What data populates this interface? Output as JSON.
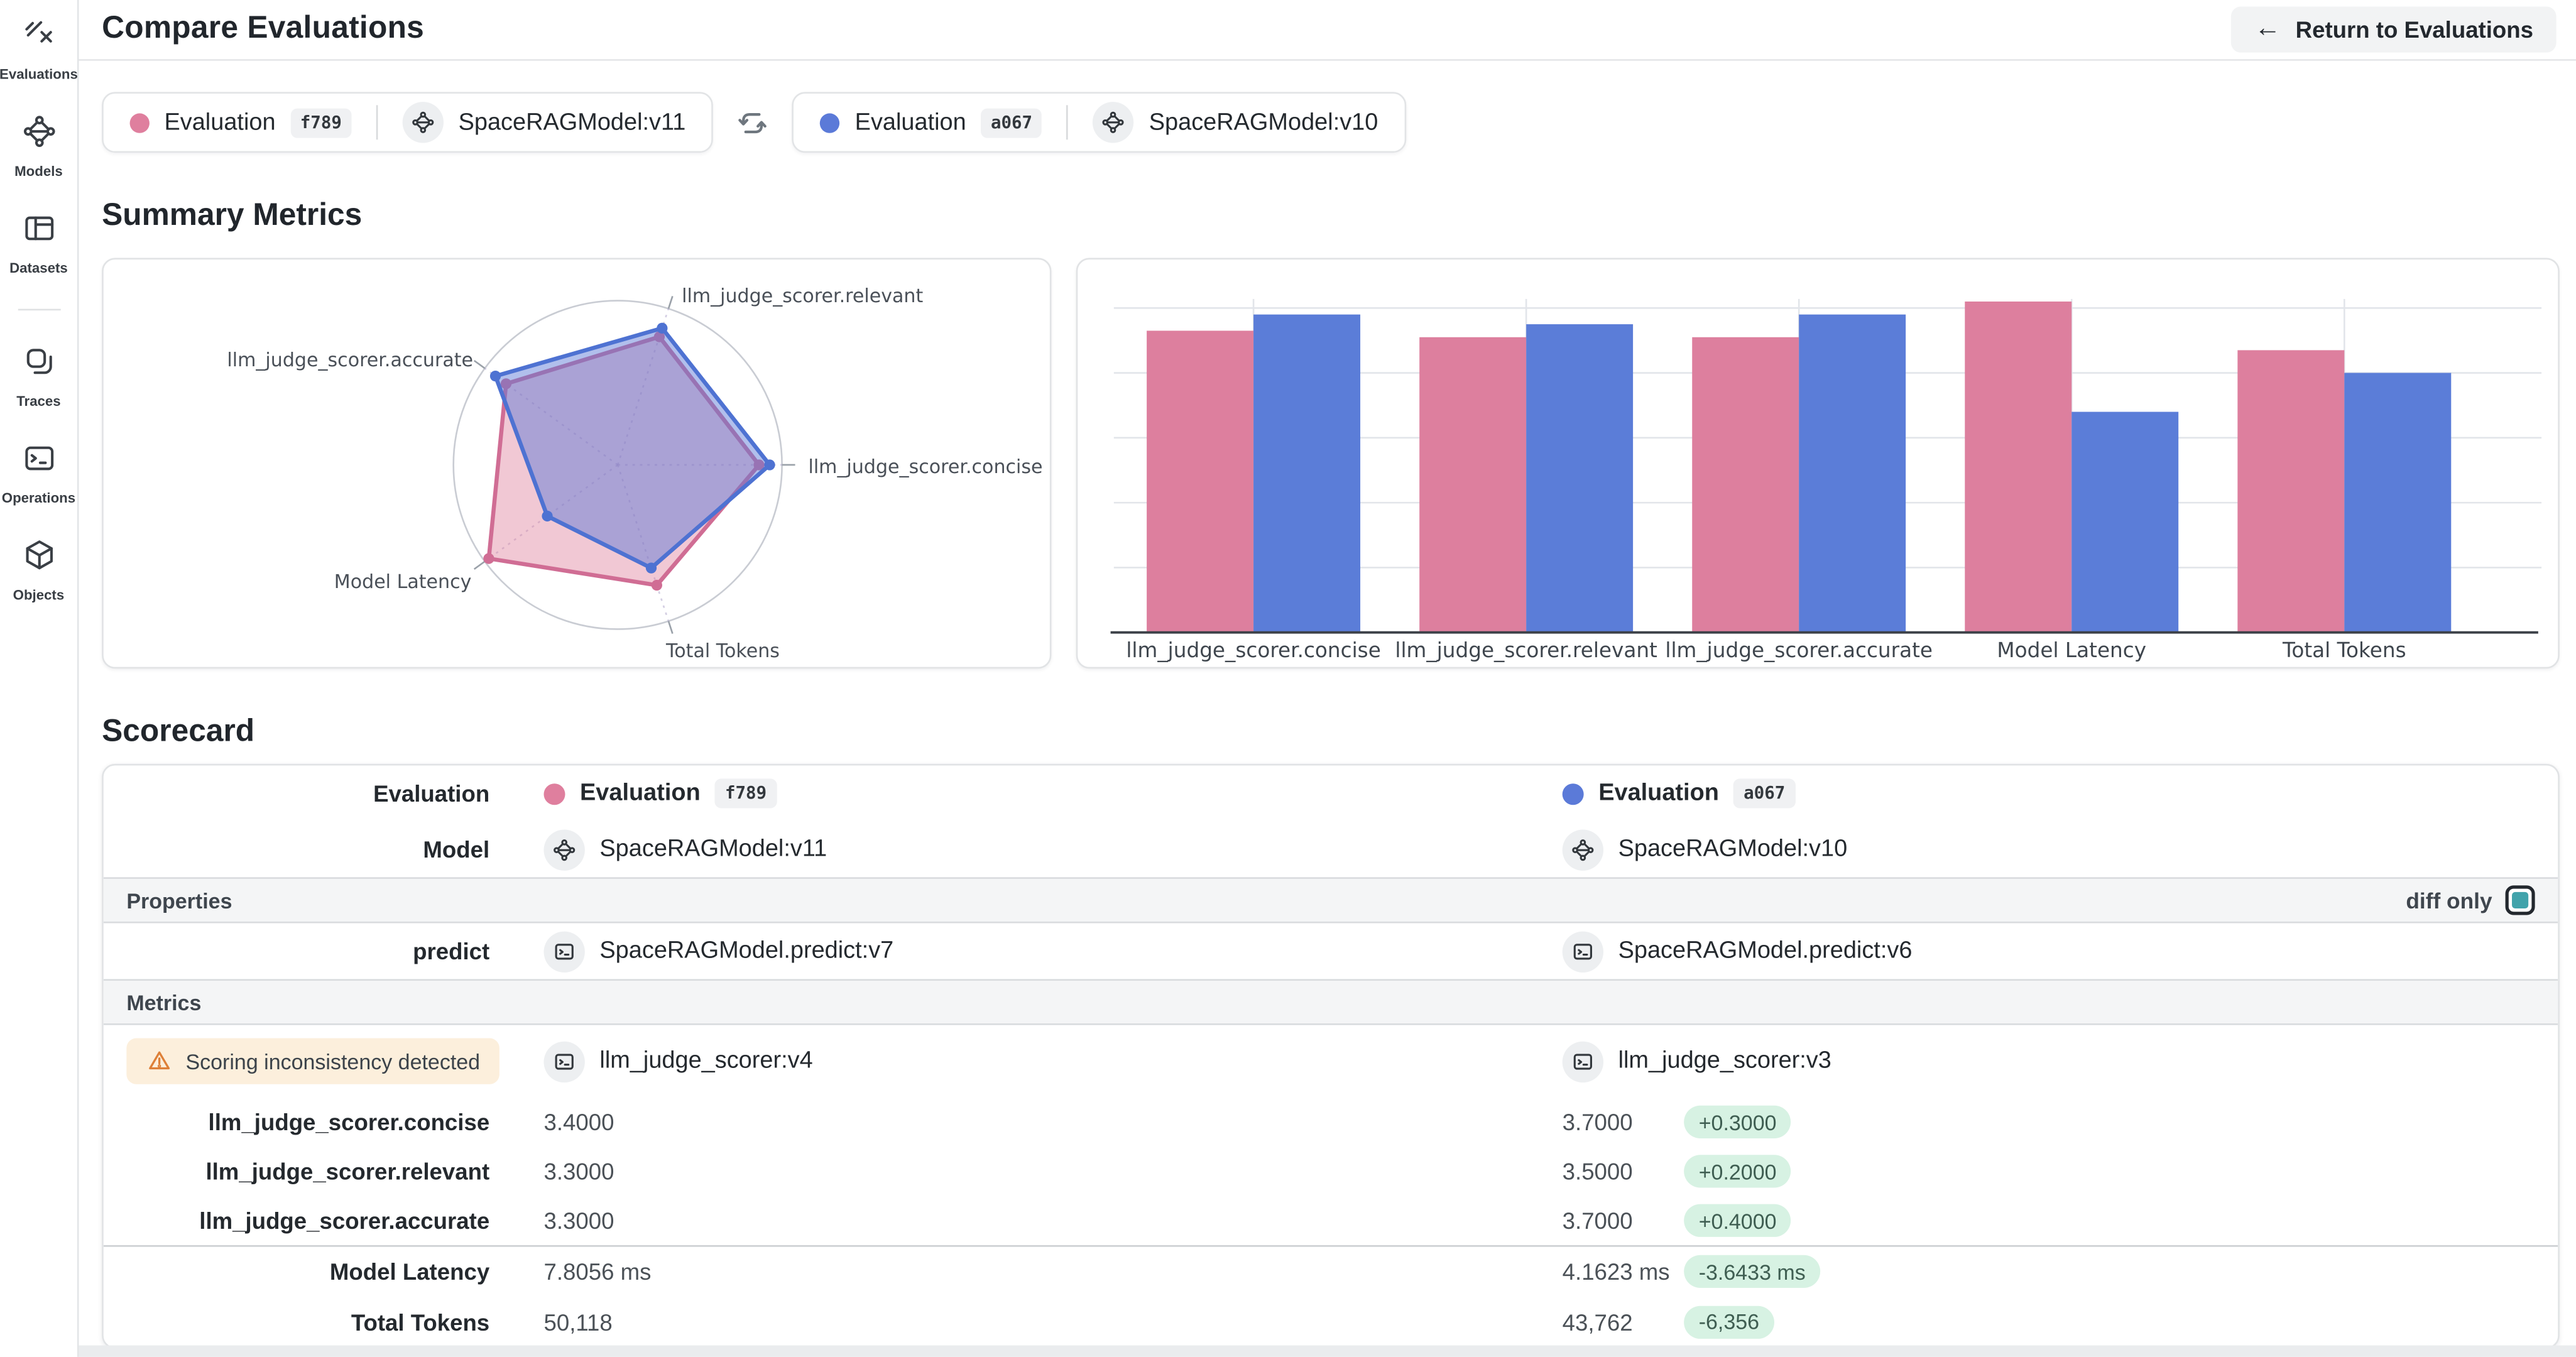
{
  "colors": {
    "pink": "#df7f9e",
    "blue": "#5b7ad8",
    "pink_line": "#d06d94",
    "blue_line": "#4e72d2",
    "green_badge_bg": "#d7f2e3",
    "green_badge_text": "#3f5e52",
    "warning_bg": "#fcefdc",
    "warning_icon": "#de8038",
    "teal_checkbox": "#41a3ab"
  },
  "sidebar": {
    "items": [
      {
        "label": "Evaluations",
        "icon": "evaluations-icon"
      },
      {
        "label": "Models",
        "icon": "models-icon"
      },
      {
        "label": "Datasets",
        "icon": "datasets-icon"
      },
      {
        "divider": true
      },
      {
        "label": "Traces",
        "icon": "traces-icon"
      },
      {
        "label": "Operations",
        "icon": "operations-icon"
      },
      {
        "label": "Objects",
        "icon": "objects-icon"
      }
    ]
  },
  "header": {
    "title": "Compare Evaluations",
    "back_arrow": "←",
    "return_button_label": "Return to Evaluations"
  },
  "comparison": {
    "left": {
      "label": "Evaluation",
      "id": "f789",
      "model": "SpaceRAGModel:v11"
    },
    "right": {
      "label": "Evaluation",
      "id": "a067",
      "model": "SpaceRAGModel:v10"
    }
  },
  "summary": {
    "heading": "Summary Metrics"
  },
  "chart_data": [
    {
      "type": "radar",
      "axes": [
        "llm_judge_scorer.relevant",
        "llm_judge_scorer.concise",
        "Total Tokens",
        "Model Latency",
        "llm_judge_scorer.accurate"
      ],
      "angles_deg": [
        72,
        0,
        288,
        216,
        144
      ],
      "rmax": 1.0,
      "grid": "single outer circle with dotted spokes",
      "series": [
        {
          "name": "Evaluation f789 (SpaceRAGModel:v11)",
          "color": "#d06d94",
          "fill": "rgba(224,133,160,0.45)",
          "normalized": [
            0.82,
            0.86,
            0.77,
            0.97,
            0.84
          ],
          "raw": [
            3.3,
            3.4,
            50118,
            7.8056,
            3.3
          ]
        },
        {
          "name": "Evaluation a067 (SpaceRAGModel:v10)",
          "color": "#4e72d2",
          "fill": "rgba(92,122,216,0.48)",
          "normalized": [
            0.875,
            0.925,
            0.66,
            0.53,
            0.92
          ],
          "raw": [
            3.5,
            3.7,
            43762,
            4.1623,
            3.7
          ]
        }
      ]
    },
    {
      "type": "bar",
      "categories": [
        "llm_judge_scorer.concise",
        "llm_judge_scorer.relevant",
        "llm_judge_scorer.accurate",
        "Model Latency",
        "Total Tokens"
      ],
      "ylim": [
        0,
        1.13
      ],
      "gridlines": "5 horizontal at 0.2 steps plus vertical line at each category center",
      "legend": "none",
      "series": [
        {
          "name": "Evaluation f789 (SpaceRAGModel:v11)",
          "color": "#dd7f9e",
          "values": [
            3.4,
            3.3,
            3.3,
            7.8056,
            50118
          ],
          "normalized": [
            0.93,
            0.91,
            0.91,
            1.02,
            0.87
          ]
        },
        {
          "name": "Evaluation a067 (SpaceRAGModel:v10)",
          "color": "#5b7dd8",
          "values": [
            3.7,
            3.5,
            3.7,
            4.1623,
            43762
          ],
          "normalized": [
            0.98,
            0.95,
            0.98,
            0.68,
            0.8
          ]
        }
      ]
    }
  ],
  "scorecard": {
    "heading": "Scorecard",
    "row_labels": {
      "evaluation": "Evaluation",
      "model": "Model",
      "predict": "predict"
    },
    "sections": {
      "properties": "Properties",
      "metrics": "Metrics"
    },
    "diff_only": {
      "label": "diff only",
      "checked": true
    },
    "warning": "Scoring inconsistency detected",
    "left": {
      "evaluation": "Evaluation",
      "evaluation_id": "f789",
      "model": "SpaceRAGModel:v11",
      "predict_op": "SpaceRAGModel.predict:v7",
      "scorer_op": "llm_judge_scorer:v4"
    },
    "right": {
      "evaluation": "Evaluation",
      "evaluation_id": "a067",
      "model": "SpaceRAGModel:v10",
      "predict_op": "SpaceRAGModel.predict:v6",
      "scorer_op": "llm_judge_scorer:v3"
    },
    "metric_rows": [
      {
        "label": "llm_judge_scorer.concise",
        "left": "3.4000",
        "right": "3.7000",
        "diff": "+0.3000"
      },
      {
        "label": "llm_judge_scorer.relevant",
        "left": "3.3000",
        "right": "3.5000",
        "diff": "+0.2000"
      },
      {
        "label": "llm_judge_scorer.accurate",
        "left": "3.3000",
        "right": "3.7000",
        "diff": "+0.4000"
      },
      {
        "label": "Model Latency",
        "left": "7.8056 ms",
        "right": "4.1623 ms",
        "diff": "-3.6433 ms",
        "divider_before": true
      },
      {
        "label": "Total Tokens",
        "left": "50,118",
        "right": "43,762",
        "diff": "-6,356"
      }
    ]
  }
}
